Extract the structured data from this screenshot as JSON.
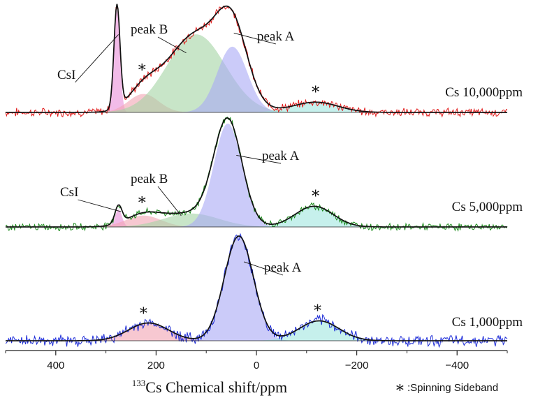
{
  "chart_data": {
    "type": "line",
    "xlabel_sup": "133",
    "xlabel_main": "Cs Chemical shift/ppm",
    "xlim": [
      500,
      -500
    ],
    "x_reversed": true,
    "xticks": [
      {
        "value": 400,
        "label": "400"
      },
      {
        "value": 200,
        "label": "200"
      },
      {
        "value": 0,
        "label": "0"
      },
      {
        "value": -200,
        "label": "−200"
      },
      {
        "value": -400,
        "label": "−400"
      }
    ],
    "legend_symbol": "∗",
    "legend_text": ":Spinning Sideband",
    "panels": [
      {
        "label": "Cs 10,000ppm",
        "data_color": "#e21b1b",
        "noise": 0.032,
        "components": [
          {
            "name": "CsI",
            "center": 278,
            "height": 1.0,
            "width": 6,
            "color": "#ea8ed8"
          },
          {
            "name": "sideband",
            "center": 225,
            "height": 0.18,
            "width": 30,
            "color": "#f2a3b2"
          },
          {
            "name": "peak B",
            "center": 120,
            "height": 0.76,
            "width": 58,
            "color": "#a3d3a3"
          },
          {
            "name": "peak A",
            "center": 48,
            "height": 0.64,
            "width": 30,
            "color": "#a9a9f5"
          },
          {
            "name": "sideband",
            "center": -118,
            "height": 0.1,
            "width": 45,
            "color": "#a0e6e0"
          }
        ],
        "annotations": [
          {
            "text": "CsI",
            "ref": 275
          },
          {
            "text": "peak B",
            "ref": 140
          },
          {
            "text": "peak A",
            "ref": 45
          }
        ],
        "stars": [
          228,
          -118
        ]
      },
      {
        "label": "Cs 5,000ppm",
        "data_color": "#1a8a1a",
        "noise": 0.026,
        "components": [
          {
            "name": "CsI",
            "center": 275,
            "height": 0.17,
            "width": 7,
            "color": "#ea8ed8"
          },
          {
            "name": "sideband",
            "center": 225,
            "height": 0.11,
            "width": 35,
            "color": "#f2a3b2"
          },
          {
            "name": "peak B",
            "center": 130,
            "height": 0.13,
            "width": 55,
            "color": "#a3d3a3"
          },
          {
            "name": "peak A",
            "center": 57,
            "height": 1.0,
            "width": 28,
            "color": "#a9a9f5"
          },
          {
            "name": "sideband",
            "center": -115,
            "height": 0.2,
            "width": 38,
            "color": "#a0e6e0"
          }
        ],
        "annotations": [
          {
            "text": "CsI",
            "ref": 270
          },
          {
            "text": "peak B",
            "ref": 150
          },
          {
            "text": "peak A",
            "ref": 40
          }
        ],
        "stars": [
          228,
          -118
        ]
      },
      {
        "label": "Cs 1,000ppm",
        "data_color": "#1c2bd6",
        "noise": 0.042,
        "components": [
          {
            "name": "sideband",
            "center": 215,
            "height": 0.17,
            "width": 40,
            "color": "#f2a3b2"
          },
          {
            "name": "peak A",
            "center": 35,
            "height": 1.0,
            "width": 29,
            "color": "#a9a9f5"
          },
          {
            "name": "sideband",
            "center": -125,
            "height": 0.19,
            "width": 40,
            "color": "#a0e6e0"
          }
        ],
        "annotations": [
          {
            "text": "peak A",
            "ref": 25
          }
        ],
        "stars": [
          225,
          -122
        ]
      }
    ]
  }
}
